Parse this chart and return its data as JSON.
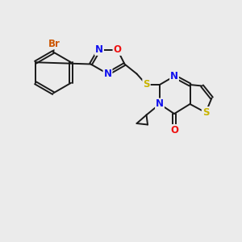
{
  "background_color": "#ebebeb",
  "bond_color": "#1a1a1a",
  "atom_colors": {
    "N": "#1010ee",
    "O": "#ee1010",
    "S": "#c8b400",
    "Br": "#cc5500",
    "C": "#1a1a1a"
  },
  "figsize": [
    3.0,
    3.0
  ],
  "dpi": 100
}
